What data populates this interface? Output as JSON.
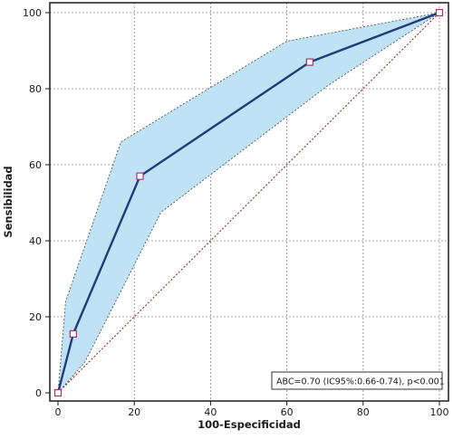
{
  "chart_data": {
    "type": "line",
    "title": "",
    "xlabel": "100-Especificidad",
    "ylabel": "Sensibilidad",
    "xlim": [
      0,
      100
    ],
    "ylim": [
      0,
      100
    ],
    "xticks": [
      0,
      20,
      40,
      60,
      80,
      100
    ],
    "yticks": [
      0,
      20,
      40,
      60,
      80,
      100
    ],
    "grid": true,
    "series": [
      {
        "role": "roc-curve",
        "x": [
          0,
          4,
          21.5,
          66,
          100
        ],
        "y": [
          0,
          15.5,
          57,
          87,
          100
        ],
        "color": "#1f3d7a",
        "marker": "square"
      },
      {
        "role": "reference-diagonal",
        "x": [
          0,
          100
        ],
        "y": [
          0,
          100
        ],
        "color": "#8b1a1a",
        "style": "dotted"
      }
    ],
    "confidence_band": {
      "upper": {
        "x": [
          0,
          2,
          16.5,
          60,
          100
        ],
        "y": [
          0,
          24,
          66,
          92.5,
          100
        ]
      },
      "lower": {
        "x": [
          0,
          7,
          27,
          71,
          100
        ],
        "y": [
          0,
          8,
          47.5,
          81,
          100
        ]
      },
      "fill": "#bfe3f5",
      "stroke": "#555555"
    },
    "annotation": {
      "text": "ABC=0.70 (IC95%:0.66-0.74), p<0.001",
      "position": "bottom-right"
    }
  }
}
